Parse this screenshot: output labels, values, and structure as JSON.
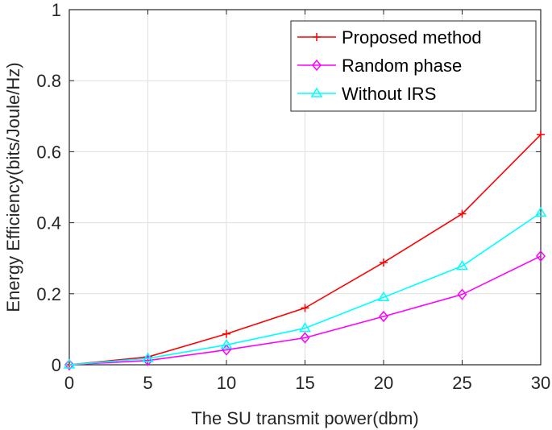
{
  "chart_data": {
    "type": "line",
    "title": "",
    "xlabel": "The SU transmit power(dbm)",
    "ylabel": "Energy Efficiency(bits/Joule/Hz)",
    "x": [
      0,
      5,
      10,
      15,
      20,
      25,
      30
    ],
    "xlim": [
      0,
      30
    ],
    "ylim": [
      0,
      1
    ],
    "xticks": [
      "0",
      "5",
      "10",
      "15",
      "20",
      "25",
      "30"
    ],
    "yticks": [
      "0",
      "0.2",
      "0.4",
      "0.6",
      "0.8",
      "1"
    ],
    "grid": true,
    "legend_position": "top-right",
    "series": [
      {
        "name": "Proposed method",
        "color": "#ff0000",
        "marker": "plus",
        "values": [
          0,
          0.022,
          0.087,
          0.16,
          0.288,
          0.425,
          0.648
        ]
      },
      {
        "name": "Random phase",
        "color": "#ff00ff",
        "marker": "diamond",
        "values": [
          0,
          0.012,
          0.042,
          0.076,
          0.136,
          0.198,
          0.306
        ]
      },
      {
        "name": "Without IRS",
        "color": "#00ffff",
        "marker": "triangle",
        "values": [
          0,
          0.018,
          0.056,
          0.103,
          0.19,
          0.278,
          0.428
        ]
      }
    ]
  }
}
